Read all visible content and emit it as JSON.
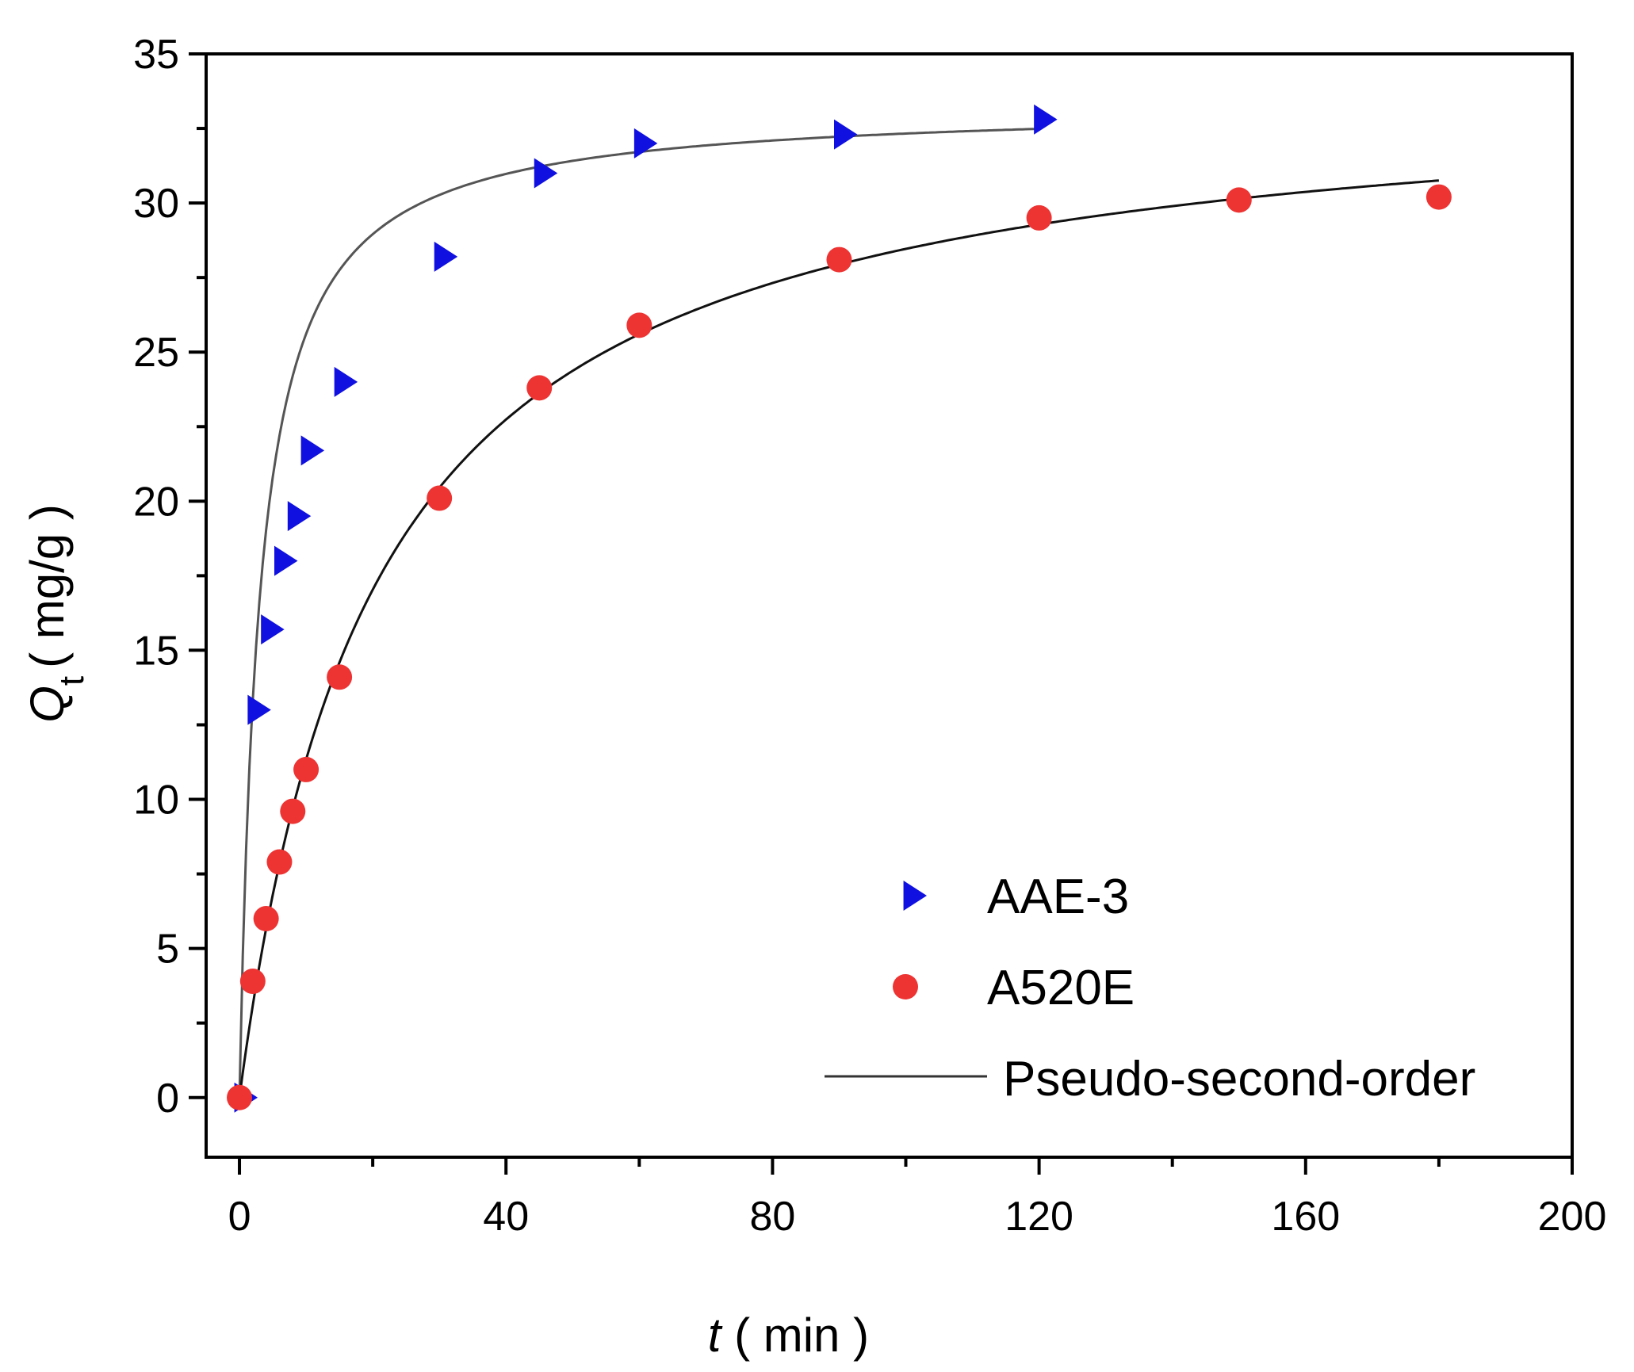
{
  "chart_data": {
    "type": "scatter",
    "title": "",
    "xlabel": {
      "var": "t",
      "unit": "( min )"
    },
    "ylabel": {
      "var": "Q",
      "sub": "t",
      "unit": "( mg/g )"
    },
    "xlim": [
      -5,
      200
    ],
    "ylim": [
      -2,
      35
    ],
    "xticks": [
      0,
      40,
      80,
      120,
      160,
      200
    ],
    "yticks": [
      0,
      5,
      10,
      15,
      20,
      25,
      30,
      35
    ],
    "legend_position": "bottom-right",
    "series": [
      {
        "name": "AAE-3",
        "marker": "triangle-right",
        "color": "#1010e0",
        "x": [
          0,
          2,
          4,
          6,
          8,
          10,
          15,
          30,
          45,
          60,
          90,
          120
        ],
        "y": [
          0,
          13.0,
          15.7,
          18.0,
          19.5,
          21.7,
          24.0,
          28.2,
          31.0,
          32.0,
          32.3,
          32.8
        ]
      },
      {
        "name": "A520E",
        "marker": "circle",
        "color": "#ee3333",
        "x": [
          0,
          2,
          4,
          6,
          8,
          10,
          15,
          30,
          45,
          60,
          90,
          120,
          150,
          180
        ],
        "y": [
          0,
          3.9,
          6.0,
          7.9,
          9.6,
          11.0,
          14.1,
          20.1,
          23.8,
          25.9,
          28.1,
          29.5,
          30.1,
          30.2
        ]
      }
    ],
    "fits": [
      {
        "name": "Pseudo-second-order",
        "for": "AAE-3",
        "qe": 33.3,
        "k": 0.01,
        "x_range": [
          0,
          120
        ],
        "color": "#555555"
      },
      {
        "name": "Pseudo-second-order",
        "for": "A520E",
        "qe": 34.2,
        "k": 0.00145,
        "x_range": [
          0,
          180
        ],
        "color": "#111111"
      }
    ],
    "legend": [
      {
        "label": "AAE-3",
        "marker": "triangle-right",
        "color": "#1010e0"
      },
      {
        "label": "A520E",
        "marker": "circle",
        "color": "#ee3333"
      },
      {
        "label": "Pseudo-second-order",
        "marker": "line",
        "color": "#333333"
      }
    ]
  }
}
